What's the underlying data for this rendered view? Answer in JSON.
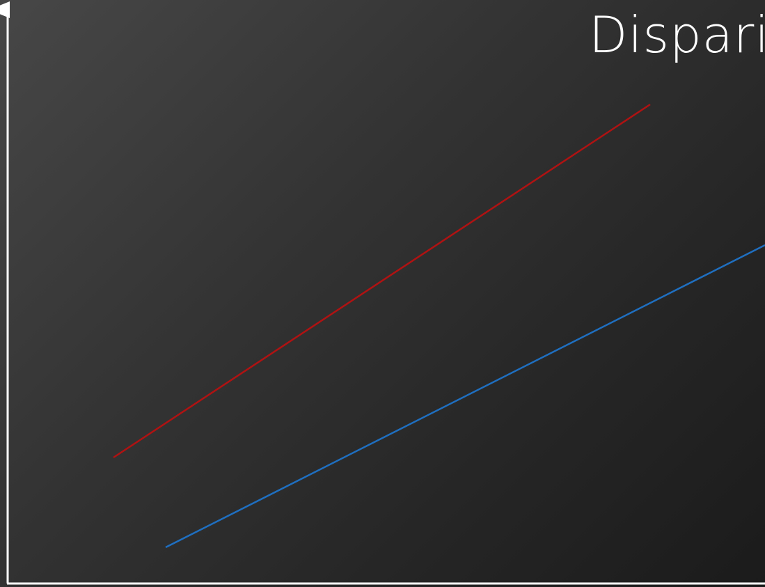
{
  "title": "Dispari",
  "colors": {
    "axis": "#ffffff",
    "title": "#ffffff",
    "red_line": "#b01212",
    "blue_line": "#1f6fc0"
  }
}
